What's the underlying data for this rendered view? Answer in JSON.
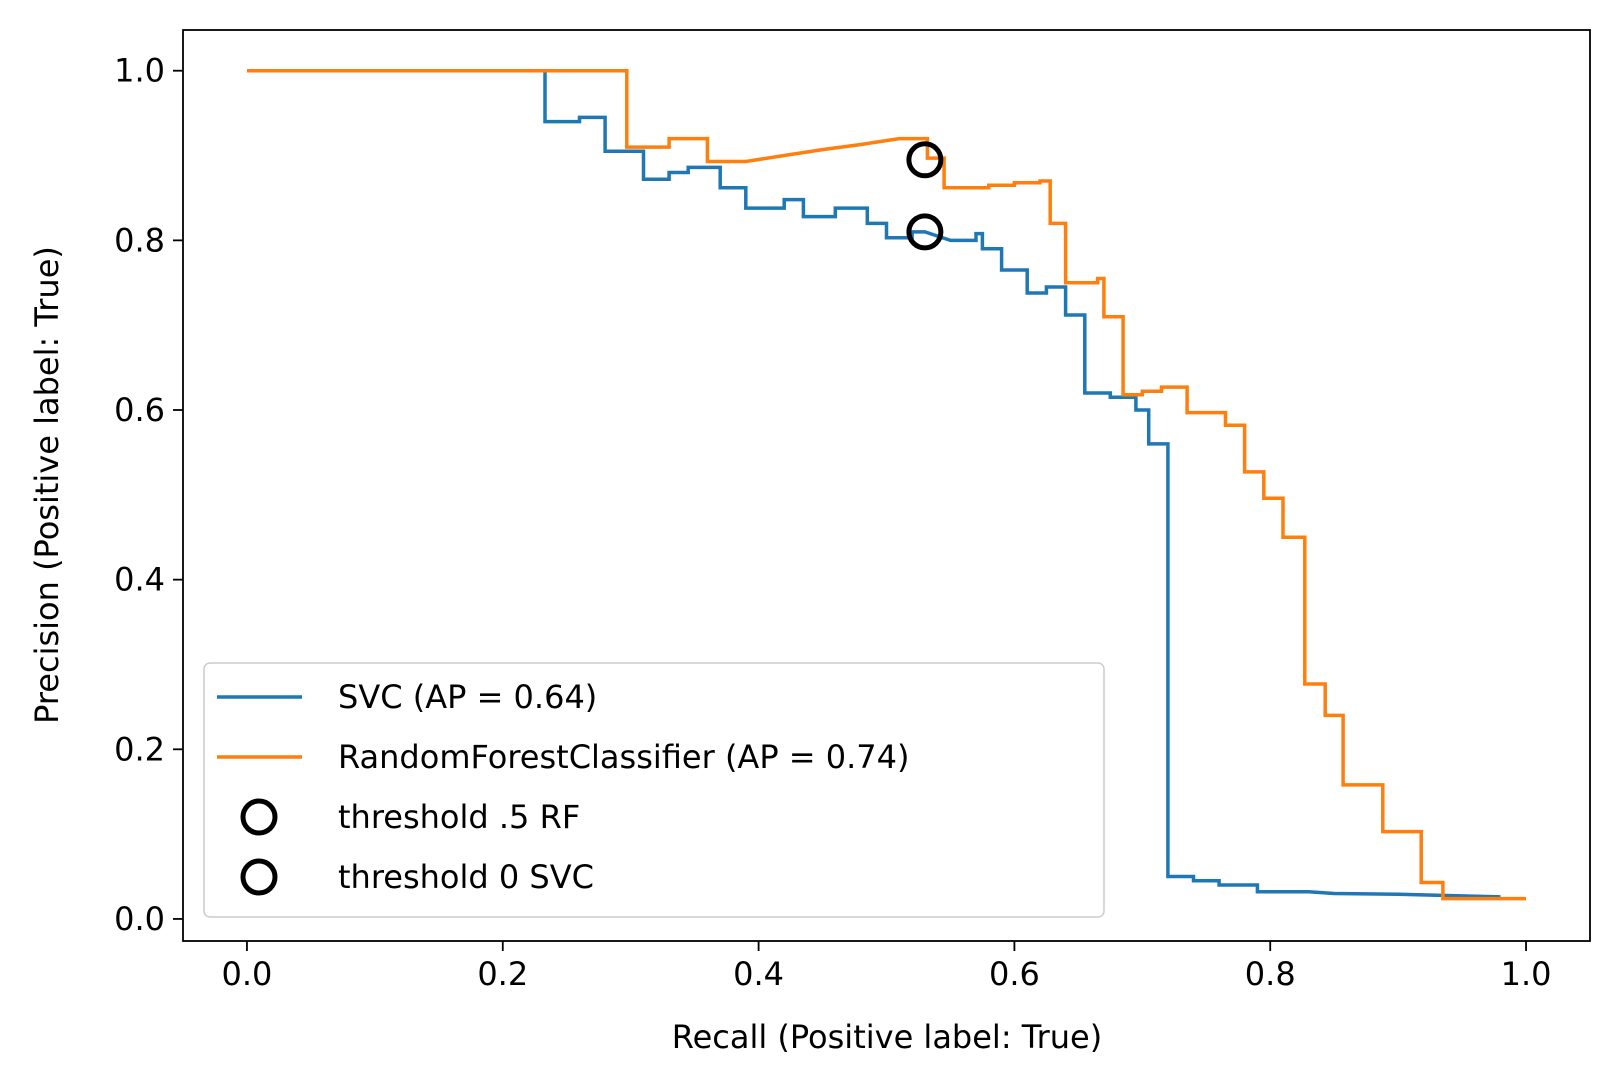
{
  "chart_data": {
    "type": "line",
    "xlabel": "Recall (Positive label: True)",
    "ylabel": "Precision (Positive label: True)",
    "xlim": [
      -0.05,
      1.05
    ],
    "ylim": [
      -0.026,
      1.048
    ],
    "x_ticks": [
      "0.0",
      "0.2",
      "0.4",
      "0.6",
      "0.8",
      "1.0"
    ],
    "y_ticks": [
      "0.0",
      "0.2",
      "0.4",
      "0.6",
      "0.8",
      "1.0"
    ],
    "grid": false,
    "legend_position": "lower-left",
    "series": [
      {
        "name": "SVC (AP = 0.64)",
        "color": "#1f77b4",
        "step": true,
        "points": [
          [
            0.0,
            1.0
          ],
          [
            0.233,
            1.0
          ],
          [
            0.233,
            0.94
          ],
          [
            0.26,
            0.94
          ],
          [
            0.26,
            0.945
          ],
          [
            0.28,
            0.945
          ],
          [
            0.28,
            0.905
          ],
          [
            0.31,
            0.905
          ],
          [
            0.31,
            0.872
          ],
          [
            0.33,
            0.872
          ],
          [
            0.33,
            0.88
          ],
          [
            0.345,
            0.88
          ],
          [
            0.345,
            0.886
          ],
          [
            0.37,
            0.886
          ],
          [
            0.37,
            0.862
          ],
          [
            0.39,
            0.862
          ],
          [
            0.39,
            0.838
          ],
          [
            0.42,
            0.838
          ],
          [
            0.42,
            0.848
          ],
          [
            0.435,
            0.848
          ],
          [
            0.435,
            0.828
          ],
          [
            0.46,
            0.828
          ],
          [
            0.46,
            0.838
          ],
          [
            0.485,
            0.838
          ],
          [
            0.485,
            0.82
          ],
          [
            0.5,
            0.82
          ],
          [
            0.5,
            0.803
          ],
          [
            0.52,
            0.803
          ],
          [
            0.52,
            0.81
          ],
          [
            0.53,
            0.81
          ],
          [
            0.55,
            0.8
          ],
          [
            0.57,
            0.8
          ],
          [
            0.57,
            0.808
          ],
          [
            0.575,
            0.808
          ],
          [
            0.575,
            0.79
          ],
          [
            0.59,
            0.79
          ],
          [
            0.59,
            0.765
          ],
          [
            0.61,
            0.765
          ],
          [
            0.61,
            0.738
          ],
          [
            0.625,
            0.738
          ],
          [
            0.625,
            0.745
          ],
          [
            0.64,
            0.745
          ],
          [
            0.64,
            0.712
          ],
          [
            0.655,
            0.712
          ],
          [
            0.655,
            0.62
          ],
          [
            0.675,
            0.62
          ],
          [
            0.675,
            0.615
          ],
          [
            0.695,
            0.615
          ],
          [
            0.695,
            0.6
          ],
          [
            0.705,
            0.6
          ],
          [
            0.705,
            0.56
          ],
          [
            0.72,
            0.56
          ],
          [
            0.72,
            0.05
          ],
          [
            0.74,
            0.05
          ],
          [
            0.74,
            0.045
          ],
          [
            0.76,
            0.045
          ],
          [
            0.76,
            0.04
          ],
          [
            0.79,
            0.04
          ],
          [
            0.79,
            0.032
          ],
          [
            0.83,
            0.032
          ],
          [
            0.85,
            0.03
          ],
          [
            0.9,
            0.029
          ],
          [
            0.98,
            0.026
          ]
        ]
      },
      {
        "name": "RandomForestClassifier (AP = 0.74)",
        "color": "#ff7f0e",
        "step": true,
        "points": [
          [
            0.0,
            1.0
          ],
          [
            0.297,
            1.0
          ],
          [
            0.297,
            0.91
          ],
          [
            0.33,
            0.91
          ],
          [
            0.33,
            0.92
          ],
          [
            0.36,
            0.92
          ],
          [
            0.36,
            0.893
          ],
          [
            0.39,
            0.893
          ],
          [
            0.42,
            0.9
          ],
          [
            0.45,
            0.907
          ],
          [
            0.48,
            0.913
          ],
          [
            0.51,
            0.92
          ],
          [
            0.532,
            0.92
          ],
          [
            0.532,
            0.897
          ],
          [
            0.545,
            0.897
          ],
          [
            0.545,
            0.862
          ],
          [
            0.58,
            0.862
          ],
          [
            0.58,
            0.865
          ],
          [
            0.6,
            0.865
          ],
          [
            0.6,
            0.868
          ],
          [
            0.62,
            0.868
          ],
          [
            0.62,
            0.87
          ],
          [
            0.628,
            0.87
          ],
          [
            0.628,
            0.82
          ],
          [
            0.64,
            0.82
          ],
          [
            0.64,
            0.75
          ],
          [
            0.665,
            0.75
          ],
          [
            0.665,
            0.755
          ],
          [
            0.67,
            0.755
          ],
          [
            0.67,
            0.71
          ],
          [
            0.685,
            0.71
          ],
          [
            0.685,
            0.618
          ],
          [
            0.7,
            0.618
          ],
          [
            0.7,
            0.622
          ],
          [
            0.715,
            0.622
          ],
          [
            0.715,
            0.627
          ],
          [
            0.735,
            0.627
          ],
          [
            0.735,
            0.597
          ],
          [
            0.765,
            0.597
          ],
          [
            0.765,
            0.582
          ],
          [
            0.78,
            0.582
          ],
          [
            0.78,
            0.527
          ],
          [
            0.795,
            0.527
          ],
          [
            0.795,
            0.496
          ],
          [
            0.81,
            0.496
          ],
          [
            0.81,
            0.45
          ],
          [
            0.827,
            0.45
          ],
          [
            0.827,
            0.277
          ],
          [
            0.843,
            0.277
          ],
          [
            0.843,
            0.24
          ],
          [
            0.857,
            0.24
          ],
          [
            0.857,
            0.158
          ],
          [
            0.888,
            0.158
          ],
          [
            0.888,
            0.103
          ],
          [
            0.918,
            0.103
          ],
          [
            0.918,
            0.043
          ],
          [
            0.935,
            0.043
          ],
          [
            0.935,
            0.024
          ],
          [
            1.0,
            0.024
          ]
        ]
      }
    ],
    "markers": [
      {
        "name": "threshold .5 RF",
        "x": 0.53,
        "y": 0.895
      },
      {
        "name": "threshold 0 SVC",
        "x": 0.53,
        "y": 0.81
      }
    ]
  }
}
